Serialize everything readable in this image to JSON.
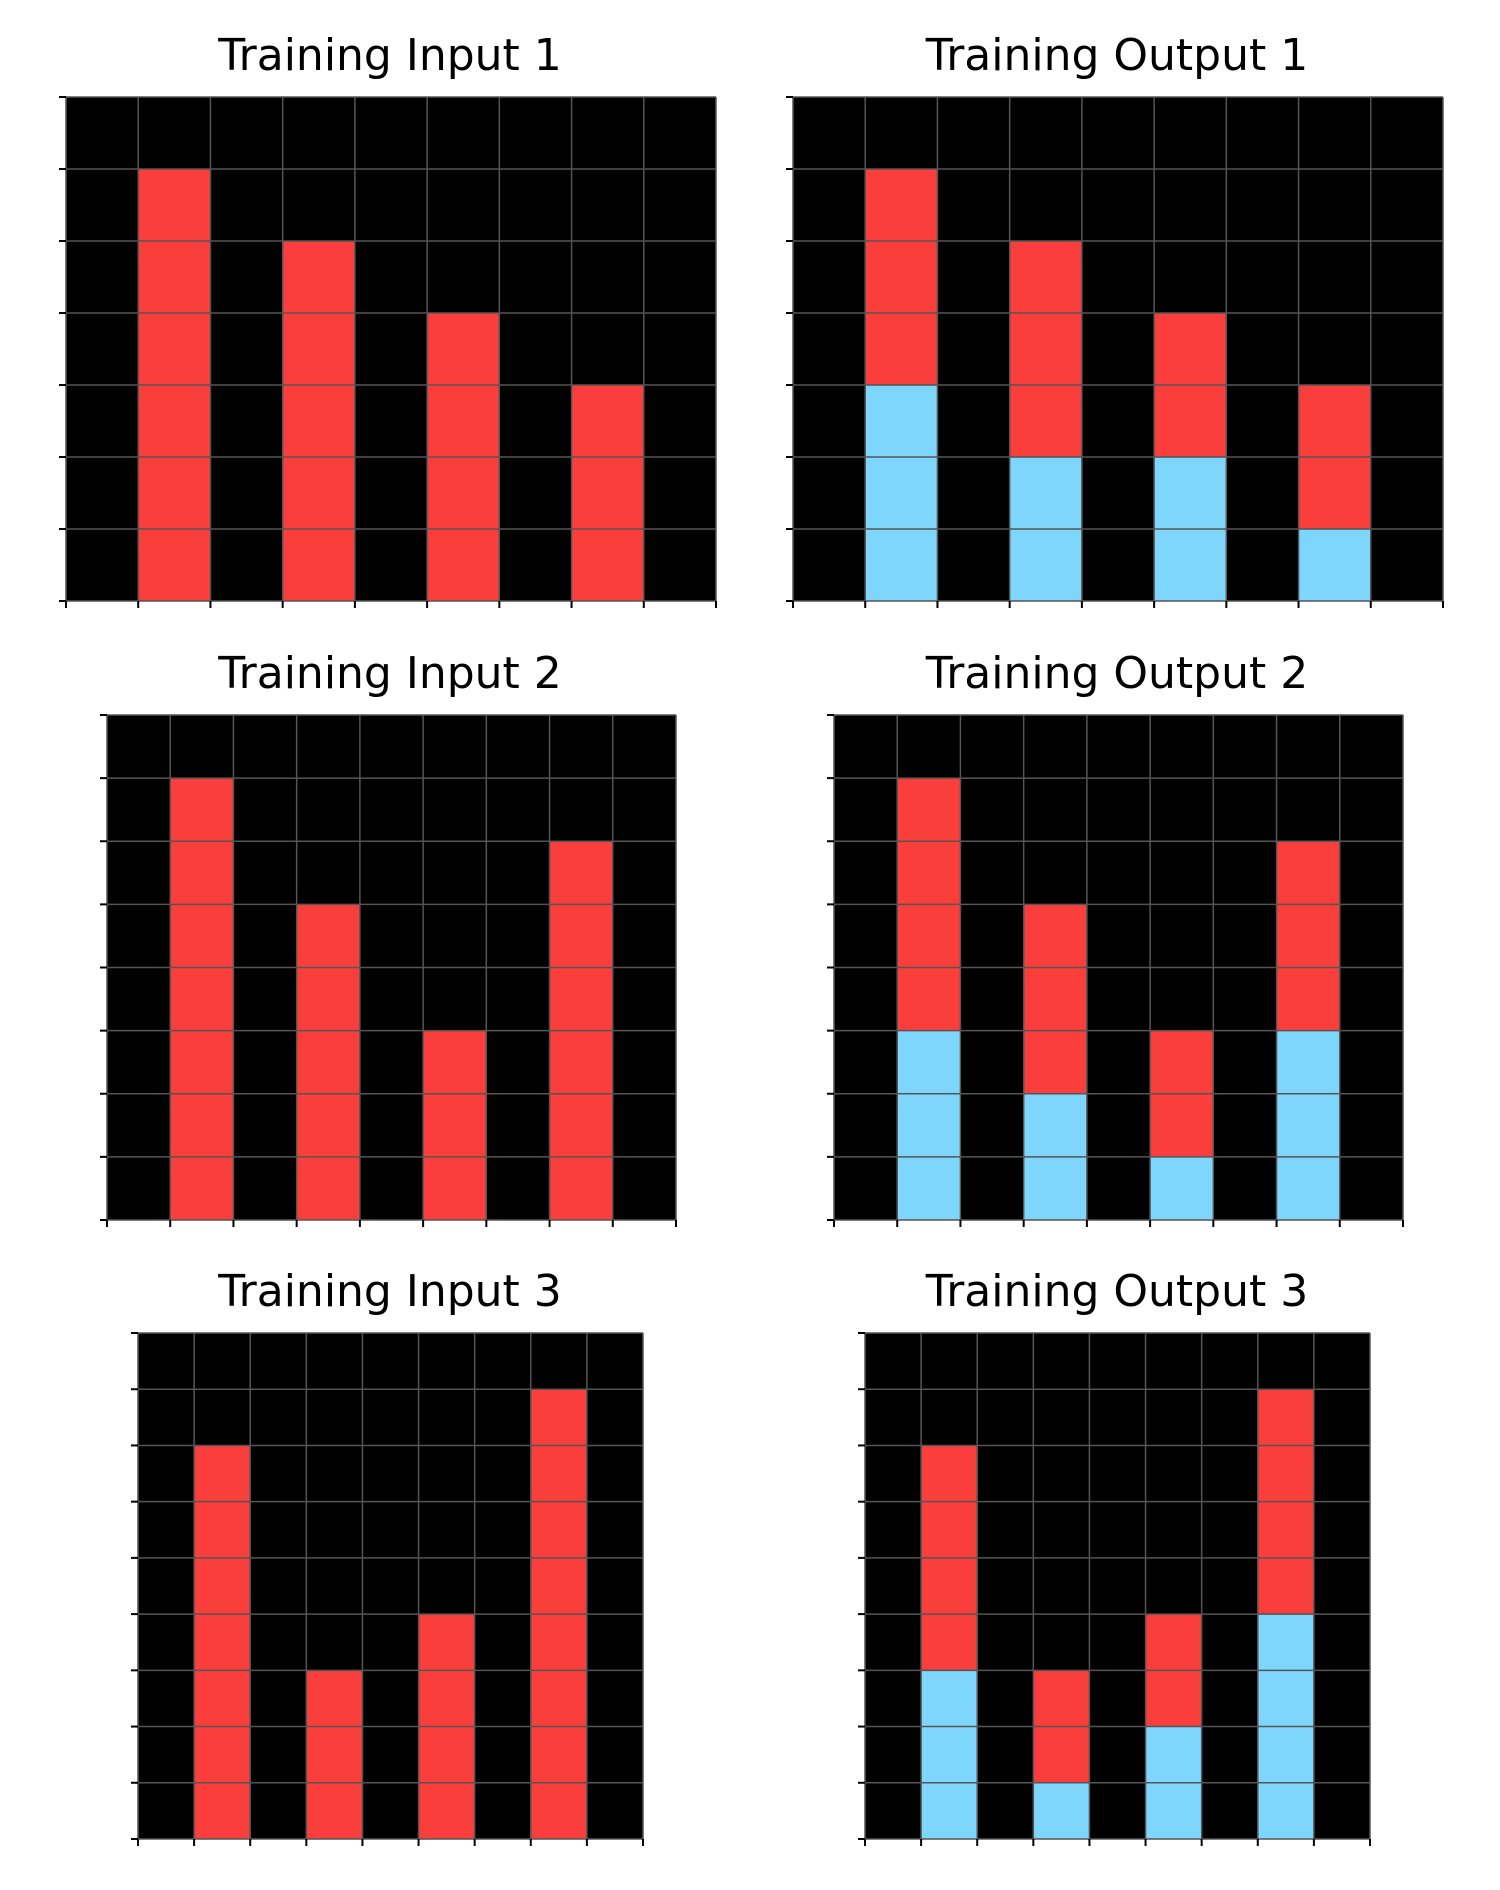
{
  "colors": {
    "0": "#000000",
    "2": "#F93E3C",
    "8": "#7FD6FC",
    "gridline": "#555555",
    "background": "#FFFFFF"
  },
  "panels": [
    {
      "title": "Training Input 1",
      "grid": [
        [
          0,
          0,
          0,
          0,
          0,
          0,
          0,
          0,
          0
        ],
        [
          0,
          2,
          0,
          0,
          0,
          0,
          0,
          0,
          0
        ],
        [
          0,
          2,
          0,
          2,
          0,
          0,
          0,
          0,
          0
        ],
        [
          0,
          2,
          0,
          2,
          0,
          2,
          0,
          0,
          0
        ],
        [
          0,
          2,
          0,
          2,
          0,
          2,
          0,
          2,
          0
        ],
        [
          0,
          2,
          0,
          2,
          0,
          2,
          0,
          2,
          0
        ],
        [
          0,
          2,
          0,
          2,
          0,
          2,
          0,
          2,
          0
        ]
      ]
    },
    {
      "title": "Training Output 1",
      "grid": [
        [
          0,
          0,
          0,
          0,
          0,
          0,
          0,
          0,
          0
        ],
        [
          0,
          2,
          0,
          0,
          0,
          0,
          0,
          0,
          0
        ],
        [
          0,
          2,
          0,
          2,
          0,
          0,
          0,
          0,
          0
        ],
        [
          0,
          2,
          0,
          2,
          0,
          2,
          0,
          0,
          0
        ],
        [
          0,
          8,
          0,
          2,
          0,
          2,
          0,
          2,
          0
        ],
        [
          0,
          8,
          0,
          8,
          0,
          8,
          0,
          2,
          0
        ],
        [
          0,
          8,
          0,
          8,
          0,
          8,
          0,
          8,
          0
        ]
      ]
    },
    {
      "title": "Training Input 2",
      "grid": [
        [
          0,
          0,
          0,
          0,
          0,
          0,
          0,
          0,
          0
        ],
        [
          0,
          2,
          0,
          0,
          0,
          0,
          0,
          0,
          0
        ],
        [
          0,
          2,
          0,
          0,
          0,
          0,
          0,
          2,
          0
        ],
        [
          0,
          2,
          0,
          2,
          0,
          0,
          0,
          2,
          0
        ],
        [
          0,
          2,
          0,
          2,
          0,
          0,
          0,
          2,
          0
        ],
        [
          0,
          2,
          0,
          2,
          0,
          2,
          0,
          2,
          0
        ],
        [
          0,
          2,
          0,
          2,
          0,
          2,
          0,
          2,
          0
        ],
        [
          0,
          2,
          0,
          2,
          0,
          2,
          0,
          2,
          0
        ]
      ]
    },
    {
      "title": "Training Output 2",
      "grid": [
        [
          0,
          0,
          0,
          0,
          0,
          0,
          0,
          0,
          0
        ],
        [
          0,
          2,
          0,
          0,
          0,
          0,
          0,
          0,
          0
        ],
        [
          0,
          2,
          0,
          0,
          0,
          0,
          0,
          2,
          0
        ],
        [
          0,
          2,
          0,
          2,
          0,
          0,
          0,
          2,
          0
        ],
        [
          0,
          2,
          0,
          2,
          0,
          0,
          0,
          2,
          0
        ],
        [
          0,
          8,
          0,
          2,
          0,
          2,
          0,
          8,
          0
        ],
        [
          0,
          8,
          0,
          8,
          0,
          2,
          0,
          8,
          0
        ],
        [
          0,
          8,
          0,
          8,
          0,
          8,
          0,
          8,
          0
        ]
      ]
    },
    {
      "title": "Training Input 3",
      "grid": [
        [
          0,
          0,
          0,
          0,
          0,
          0,
          0,
          0,
          0
        ],
        [
          0,
          0,
          0,
          0,
          0,
          0,
          0,
          2,
          0
        ],
        [
          0,
          2,
          0,
          0,
          0,
          0,
          0,
          2,
          0
        ],
        [
          0,
          2,
          0,
          0,
          0,
          0,
          0,
          2,
          0
        ],
        [
          0,
          2,
          0,
          0,
          0,
          0,
          0,
          2,
          0
        ],
        [
          0,
          2,
          0,
          0,
          0,
          2,
          0,
          2,
          0
        ],
        [
          0,
          2,
          0,
          2,
          0,
          2,
          0,
          2,
          0
        ],
        [
          0,
          2,
          0,
          2,
          0,
          2,
          0,
          2,
          0
        ],
        [
          0,
          2,
          0,
          2,
          0,
          2,
          0,
          2,
          0
        ]
      ]
    },
    {
      "title": "Training Output 3",
      "grid": [
        [
          0,
          0,
          0,
          0,
          0,
          0,
          0,
          0,
          0
        ],
        [
          0,
          0,
          0,
          0,
          0,
          0,
          0,
          2,
          0
        ],
        [
          0,
          2,
          0,
          0,
          0,
          0,
          0,
          2,
          0
        ],
        [
          0,
          2,
          0,
          0,
          0,
          0,
          0,
          2,
          0
        ],
        [
          0,
          2,
          0,
          0,
          0,
          0,
          0,
          2,
          0
        ],
        [
          0,
          2,
          0,
          0,
          0,
          2,
          0,
          8,
          0
        ],
        [
          0,
          8,
          0,
          2,
          0,
          2,
          0,
          8,
          0
        ],
        [
          0,
          8,
          0,
          2,
          0,
          8,
          0,
          8,
          0
        ],
        [
          0,
          8,
          0,
          8,
          0,
          8,
          0,
          8,
          0
        ]
      ]
    }
  ]
}
